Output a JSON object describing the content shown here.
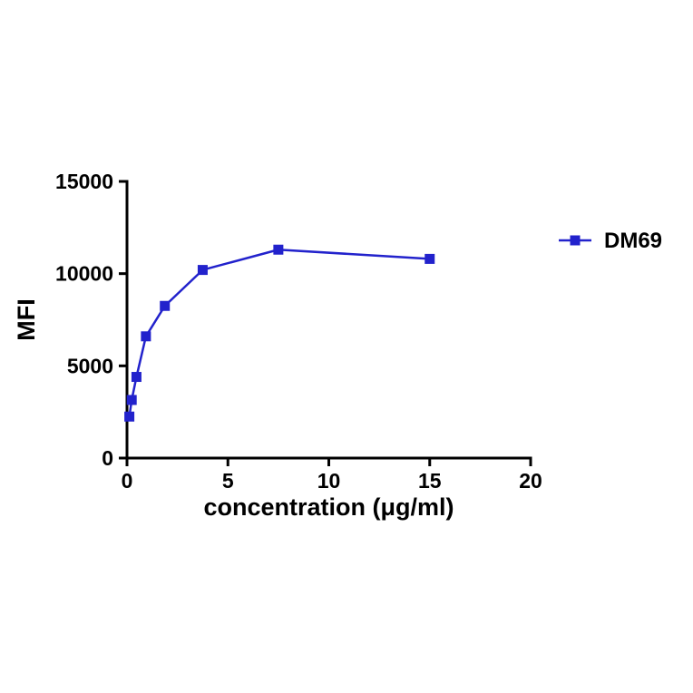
{
  "page": {
    "background": "#ffffff"
  },
  "chart_data": {
    "type": "line",
    "title": "",
    "xlabel": "concentration (μg/ml)",
    "ylabel": "MFI",
    "xlim": [
      0,
      20
    ],
    "ylim": [
      0,
      15000
    ],
    "xticks": [
      0,
      5,
      10,
      15,
      20
    ],
    "yticks": [
      0,
      5000,
      10000,
      15000
    ],
    "grid": false,
    "legend_position": "right",
    "axis_color": "#000000",
    "series": [
      {
        "name": "DM69",
        "color": "#2222CC",
        "marker": "square",
        "x": [
          0.117,
          0.234,
          0.469,
          0.938,
          1.875,
          3.75,
          7.5,
          15
        ],
        "y": [
          2250,
          3150,
          4400,
          6600,
          8250,
          10200,
          11300,
          10800
        ]
      }
    ]
  }
}
